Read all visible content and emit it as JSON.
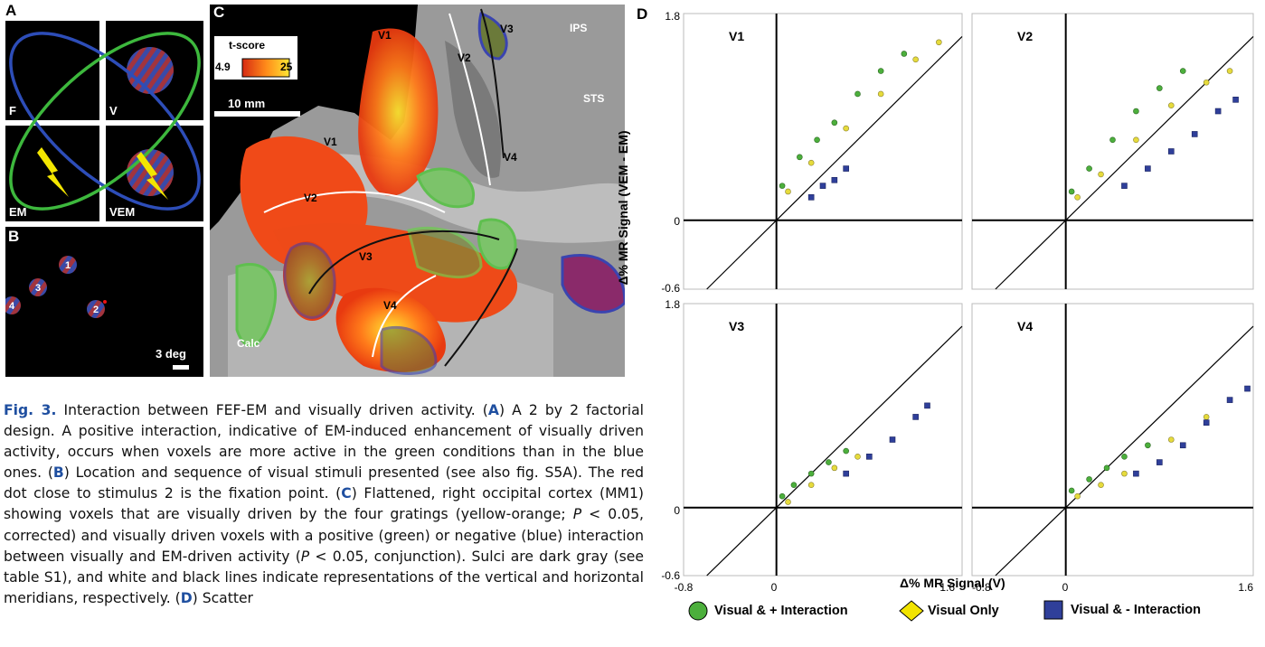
{
  "panelA": {
    "letter": "A",
    "labels": [
      "F",
      "V",
      "EM",
      "VEM"
    ]
  },
  "panelB": {
    "letter": "B",
    "stimuli": [
      "1",
      "3",
      "4",
      "2"
    ],
    "scale_label": "3 deg"
  },
  "panelC": {
    "letter": "C",
    "colorbar_title": "t-score",
    "colorbar_min": "4.9",
    "colorbar_max": "25",
    "scale_label": "10 mm",
    "area_labels": [
      "V1",
      "V2",
      "V3",
      "IPS",
      "STS",
      "V1",
      "V2",
      "V4",
      "V3",
      "V4",
      "Calc"
    ]
  },
  "panelD": {
    "letter": "D",
    "ylabel": "Δ% MR Signal (VEM - EM)",
    "xlabel": "Δ% MR Signal (V)",
    "y_ticks": [
      "1.8",
      "0",
      "-0.6"
    ],
    "x_ticks": [
      "-0.8",
      "0",
      "1.6"
    ],
    "legend": [
      {
        "label": "Visual & + Interaction",
        "color": "#4caf3c",
        "shape": "circle"
      },
      {
        "label": "Visual Only",
        "color": "#f2e400",
        "shape": "diamond"
      },
      {
        "label": "Visual & - Interaction",
        "color": "#2f3f9a",
        "shape": "square"
      }
    ]
  },
  "chart_data": [
    {
      "type": "scatter",
      "title": "V1",
      "xlim": [
        -0.8,
        1.6
      ],
      "ylim": [
        -0.6,
        1.8
      ],
      "series": [
        {
          "name": "Visual & + Interaction",
          "points": [
            [
              0.05,
              0.3
            ],
            [
              0.2,
              0.55
            ],
            [
              0.35,
              0.7
            ],
            [
              0.5,
              0.85
            ],
            [
              0.7,
              1.1
            ],
            [
              0.9,
              1.3
            ],
            [
              1.1,
              1.45
            ]
          ]
        },
        {
          "name": "Visual Only",
          "points": [
            [
              0.1,
              0.25
            ],
            [
              0.3,
              0.5
            ],
            [
              0.6,
              0.8
            ],
            [
              0.9,
              1.1
            ],
            [
              1.2,
              1.4
            ],
            [
              1.4,
              1.55
            ]
          ]
        },
        {
          "name": "Visual & - Interaction",
          "points": [
            [
              0.3,
              0.2
            ],
            [
              0.4,
              0.3
            ],
            [
              0.5,
              0.35
            ],
            [
              0.6,
              0.45
            ]
          ]
        }
      ]
    },
    {
      "type": "scatter",
      "title": "V2",
      "xlim": [
        -0.8,
        1.6
      ],
      "ylim": [
        -0.6,
        1.8
      ],
      "series": [
        {
          "name": "Visual & + Interaction",
          "points": [
            [
              0.05,
              0.25
            ],
            [
              0.2,
              0.45
            ],
            [
              0.4,
              0.7
            ],
            [
              0.6,
              0.95
            ],
            [
              0.8,
              1.15
            ],
            [
              1.0,
              1.3
            ]
          ]
        },
        {
          "name": "Visual Only",
          "points": [
            [
              0.1,
              0.2
            ],
            [
              0.3,
              0.4
            ],
            [
              0.6,
              0.7
            ],
            [
              0.9,
              1.0
            ],
            [
              1.2,
              1.2
            ],
            [
              1.4,
              1.3
            ]
          ]
        },
        {
          "name": "Visual & - Interaction",
          "points": [
            [
              0.5,
              0.3
            ],
            [
              0.7,
              0.45
            ],
            [
              0.9,
              0.6
            ],
            [
              1.1,
              0.75
            ],
            [
              1.3,
              0.95
            ],
            [
              1.45,
              1.05
            ]
          ]
        }
      ]
    },
    {
      "type": "scatter",
      "title": "V3",
      "xlim": [
        -0.8,
        1.6
      ],
      "ylim": [
        -0.6,
        1.8
      ],
      "series": [
        {
          "name": "Visual & + Interaction",
          "points": [
            [
              0.05,
              0.1
            ],
            [
              0.15,
              0.2
            ],
            [
              0.3,
              0.3
            ],
            [
              0.45,
              0.4
            ],
            [
              0.6,
              0.5
            ]
          ]
        },
        {
          "name": "Visual Only",
          "points": [
            [
              0.1,
              0.05
            ],
            [
              0.3,
              0.2
            ],
            [
              0.5,
              0.35
            ],
            [
              0.7,
              0.45
            ]
          ]
        },
        {
          "name": "Visual & - Interaction",
          "points": [
            [
              0.6,
              0.3
            ],
            [
              0.8,
              0.45
            ],
            [
              1.0,
              0.6
            ],
            [
              1.2,
              0.8
            ],
            [
              1.3,
              0.9
            ]
          ]
        }
      ]
    },
    {
      "type": "scatter",
      "title": "V4",
      "xlim": [
        -0.8,
        1.6
      ],
      "ylim": [
        -0.6,
        1.8
      ],
      "series": [
        {
          "name": "Visual & + Interaction",
          "points": [
            [
              0.05,
              0.15
            ],
            [
              0.2,
              0.25
            ],
            [
              0.35,
              0.35
            ],
            [
              0.5,
              0.45
            ],
            [
              0.7,
              0.55
            ]
          ]
        },
        {
          "name": "Visual Only",
          "points": [
            [
              0.1,
              0.1
            ],
            [
              0.3,
              0.2
            ],
            [
              0.5,
              0.3
            ],
            [
              0.9,
              0.6
            ],
            [
              1.2,
              0.8
            ]
          ]
        },
        {
          "name": "Visual & - Interaction",
          "points": [
            [
              0.6,
              0.3
            ],
            [
              0.8,
              0.4
            ],
            [
              1.0,
              0.55
            ],
            [
              1.2,
              0.75
            ],
            [
              1.4,
              0.95
            ],
            [
              1.55,
              1.05
            ]
          ]
        }
      ]
    }
  ],
  "caption": {
    "title": "Fig. 3.",
    "s1": " Interaction between FEF-EM and visually driven activity. (",
    "r1": "A",
    "s2": ") A 2 by 2 factorial design. A positive interaction, indicative of EM-induced enhancement of visually driven activity, occurs when voxels are more active in the green conditions than in the blue ones. (",
    "r2": "B",
    "s3": ") Location and sequence of visual stimuli presented (see also fig. S5A). The red dot close to stimulus 2 is the fixation point. (",
    "r3": "C",
    "s4": ") Flattened, right occipital cortex (MM1) showing voxels that are visually driven by the four gratings (yellow-orange; ",
    "p1": "P",
    "s5": " < 0.05, corrected) and visually driven voxels with a positive (green) or negative (blue) interaction between visually and EM-driven activity (",
    "p2": "P",
    "s6": " < 0.05, conjunction). Sulci are dark gray (see table S1), and white and black lines indicate representations of the vertical and horizontal meridians, respectively. (",
    "r4": "D",
    "s7": ") Scatter"
  }
}
